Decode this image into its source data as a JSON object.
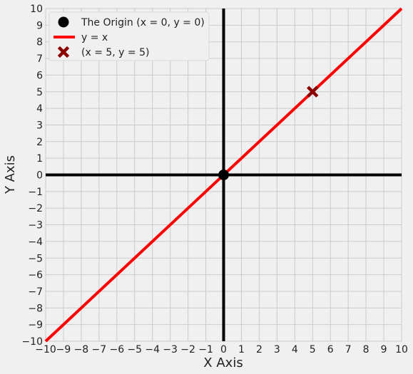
{
  "chart_data": {
    "type": "line",
    "xlabel": "X Axis",
    "ylabel": "Y Axis",
    "xlim": [
      -10,
      10
    ],
    "ylim": [
      -10,
      10
    ],
    "xticks": [
      -10,
      -9,
      -8,
      -7,
      -6,
      -5,
      -4,
      -3,
      -2,
      -1,
      0,
      1,
      2,
      3,
      4,
      5,
      6,
      7,
      8,
      9,
      10
    ],
    "yticks": [
      -10,
      -9,
      -8,
      -7,
      -6,
      -5,
      -4,
      -3,
      -2,
      -1,
      0,
      1,
      2,
      3,
      4,
      5,
      6,
      7,
      8,
      9,
      10
    ],
    "grid": true,
    "legend_position": "top-left",
    "series": [
      {
        "name": "The Origin (x = 0, y = 0)",
        "type": "scatter",
        "marker": "circle",
        "color": "#000000",
        "points": [
          [
            0,
            0
          ]
        ]
      },
      {
        "name": "y = x",
        "type": "line",
        "color": "#ff0000",
        "x": [
          -10,
          10
        ],
        "y": [
          -10,
          10
        ]
      },
      {
        "name": "(x = 5, y = 5)",
        "type": "scatter",
        "marker": "x",
        "color": "#8b0000",
        "points": [
          [
            5,
            5
          ]
        ]
      }
    ],
    "reference_lines": [
      {
        "orientation": "horizontal",
        "value": 0,
        "color": "#000000"
      },
      {
        "orientation": "vertical",
        "value": 0,
        "color": "#000000"
      }
    ],
    "colors": {
      "background": "#f0f0f0",
      "grid": "#cbcbcb",
      "text": "#222222"
    }
  }
}
